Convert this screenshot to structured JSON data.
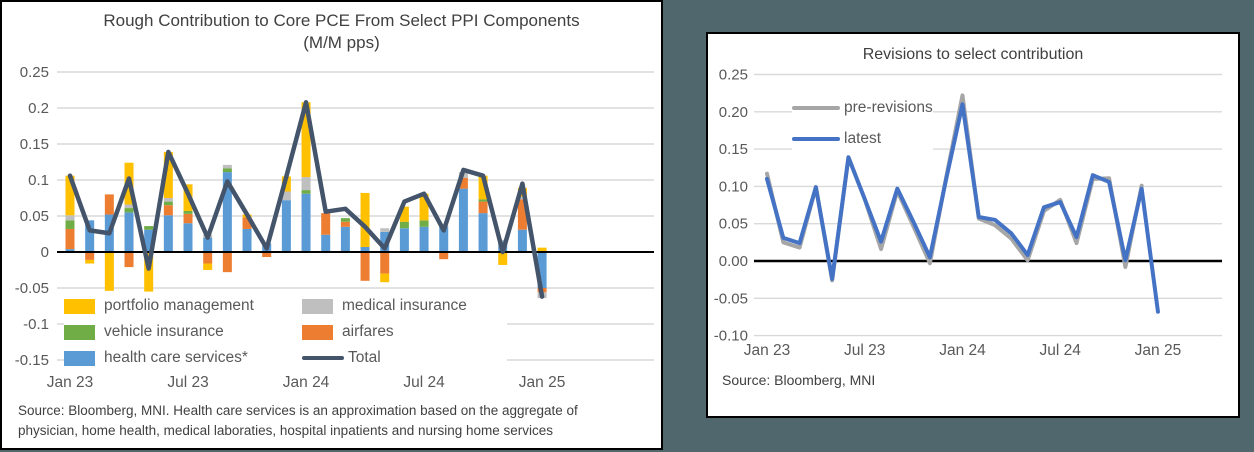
{
  "colors": {
    "background_teal": "#4F676D",
    "panel_bg": "#FFFFFF",
    "panel_border": "#000000",
    "gridline": "#D9D9D9",
    "zero_line": "#000000",
    "tick_text": "#595959",
    "title_text": "#404040",
    "health_blue": "#5B9BD5",
    "airfares_orange": "#ED7D31",
    "vehicle_green": "#70AD47",
    "medical_gray": "#BFBFBF",
    "portfolio_yellow": "#FFC000",
    "total_line": "#44546A",
    "latest_blue": "#4472C4",
    "prerevisions_gray": "#A6A6A6"
  },
  "left_chart": {
    "title_line1": "Rough Contribution to Core PCE From Select PPI Components",
    "title_line2": "(M/M pps)",
    "y_ticks": [
      "0.25",
      "0.2",
      "0.15",
      "0.1",
      "0.05",
      "0",
      "-0.05",
      "-0.1",
      "-0.15"
    ],
    "x_ticks": [
      "Jan 23",
      "Jul 23",
      "Jan 24",
      "Jul 24",
      "Jan 25"
    ],
    "legend": {
      "portfolio": "portfolio management",
      "medical": "medical insurance",
      "vehicle": "vehicle insurance",
      "airfares": "airfares",
      "health": "health care services*",
      "total": "Total"
    },
    "source_line1": "Source: Bloomberg, MNI. Health care services is an approximation based on the aggregate of",
    "source_line2": "physician, home health, medical laboraties, hospital inpatients and nursing home services"
  },
  "right_chart": {
    "title": "Revisions to select contribution",
    "y_ticks": [
      "0.25",
      "0.20",
      "0.15",
      "0.10",
      "0.05",
      "0.00",
      "-0.05",
      "-0.10"
    ],
    "x_ticks": [
      "Jan 23",
      "Jul 23",
      "Jan 24",
      "Jul 24",
      "Jan 25"
    ],
    "legend": {
      "pre_revisions": "pre-revisions",
      "latest": "latest"
    },
    "source": "Source: Bloomberg, MNI"
  },
  "chart_data": [
    {
      "type": "bar",
      "subtype": "stacked-with-line-overlay",
      "title": "Rough Contribution to Core PCE From Select PPI Components (M/M pps)",
      "categories": [
        "Jan 23",
        "Feb 23",
        "Mar 23",
        "Apr 23",
        "May 23",
        "Jun 23",
        "Jul 23",
        "Aug 23",
        "Sep 23",
        "Oct 23",
        "Nov 23",
        "Dec 23",
        "Jan 24",
        "Feb 24",
        "Mar 24",
        "Apr 24",
        "May 24",
        "Jun 24",
        "Jul 24",
        "Aug 24",
        "Sep 24",
        "Oct 24",
        "Nov 24",
        "Dec 24",
        "Jan 25"
      ],
      "x_tick_labels_shown_every": 6,
      "ylim": [
        -0.15,
        0.25
      ],
      "grid": true,
      "legend_position": "bottom-left-inside",
      "series": [
        {
          "name": "health care services*",
          "color": "#5B9BD5",
          "values": [
            0.004,
            0.044,
            0.052,
            0.055,
            0.031,
            0.051,
            0.04,
            0.02,
            0.111,
            0.032,
            0.012,
            0.072,
            0.081,
            0.024,
            0.035,
            0.007,
            0.028,
            0.033,
            0.035,
            0.035,
            0.088,
            0.054,
            0.015,
            0.031,
            -0.05
          ]
        },
        {
          "name": "airfares",
          "color": "#ED7D31",
          "values": [
            0.028,
            -0.011,
            0.028,
            -0.021,
            0.0,
            0.014,
            0.013,
            -0.016,
            -0.028,
            0.016,
            -0.007,
            0.0,
            0.0,
            0.03,
            0.007,
            -0.04,
            -0.03,
            0.0,
            0.0,
            -0.01,
            0.015,
            0.016,
            0.0,
            0.042,
            -0.006
          ]
        },
        {
          "name": "vehicle insurance",
          "color": "#70AD47",
          "values": [
            0.012,
            0.0,
            0.0,
            0.006,
            0.005,
            0.005,
            0.004,
            0.0,
            0.005,
            0.0,
            0.0,
            0.0,
            0.005,
            0.0,
            0.005,
            0.0,
            0.0,
            0.009,
            0.009,
            0.0,
            0.0,
            0.003,
            0.0,
            0.0,
            0.0
          ]
        },
        {
          "name": "medical insurance",
          "color": "#BFBFBF",
          "values": [
            0.007,
            0.0,
            0.0,
            0.005,
            0.0,
            0.005,
            0.0,
            0.004,
            0.005,
            0.0,
            0.0,
            0.012,
            0.018,
            0.0,
            0.0,
            0.0,
            0.005,
            0.0,
            0.0,
            0.003,
            0.008,
            0.0,
            0.002,
            0.004,
            -0.008
          ]
        },
        {
          "name": "portfolio management",
          "color": "#FFC000",
          "values": [
            0.055,
            -0.005,
            -0.054,
            0.058,
            -0.055,
            0.064,
            0.037,
            -0.009,
            0.0,
            0.004,
            0.0,
            0.021,
            0.104,
            0.0,
            0.0,
            0.075,
            -0.012,
            0.021,
            0.037,
            0.0,
            0.0,
            0.033,
            -0.018,
            0.012,
            0.006
          ]
        }
      ],
      "line_series": {
        "name": "Total",
        "color": "#44546A",
        "values": [
          0.106,
          0.03,
          0.026,
          0.102,
          -0.023,
          0.139,
          0.081,
          0.02,
          0.098,
          0.052,
          0.005,
          0.105,
          0.208,
          0.056,
          0.06,
          0.035,
          0.005,
          0.07,
          0.081,
          0.03,
          0.114,
          0.106,
          0.0,
          0.095,
          -0.062
        ]
      }
    },
    {
      "type": "line",
      "title": "Revisions to select contribution",
      "categories": [
        "Jan 23",
        "Feb 23",
        "Mar 23",
        "Apr 23",
        "May 23",
        "Jun 23",
        "Jul 23",
        "Aug 23",
        "Sep 23",
        "Oct 23",
        "Nov 23",
        "Dec 23",
        "Jan 24",
        "Feb 24",
        "Mar 24",
        "Apr 24",
        "May 24",
        "Jun 24",
        "Jul 24",
        "Aug 24",
        "Sep 24",
        "Oct 24",
        "Nov 24",
        "Dec 24",
        "Jan 25"
      ],
      "x_tick_labels_shown_every": 6,
      "ylim": [
        -0.1,
        0.25
      ],
      "grid": true,
      "legend_position": "top-left-inside",
      "series": [
        {
          "name": "pre-revisions",
          "color": "#A6A6A6",
          "values": [
            0.117,
            0.025,
            0.018,
            0.099,
            -0.026,
            0.139,
            0.083,
            0.016,
            0.094,
            0.046,
            -0.003,
            0.112,
            0.222,
            0.057,
            0.048,
            0.03,
            0.001,
            0.067,
            0.082,
            0.024,
            0.11,
            0.111,
            -0.008,
            0.101,
            null
          ]
        },
        {
          "name": "latest",
          "color": "#4472C4",
          "values": [
            0.11,
            0.031,
            0.024,
            0.099,
            -0.024,
            0.139,
            0.083,
            0.026,
            0.097,
            0.052,
            0.005,
            0.11,
            0.21,
            0.059,
            0.055,
            0.037,
            0.008,
            0.072,
            0.079,
            0.032,
            0.115,
            0.106,
            0.001,
            0.097,
            -0.068
          ]
        }
      ]
    }
  ]
}
